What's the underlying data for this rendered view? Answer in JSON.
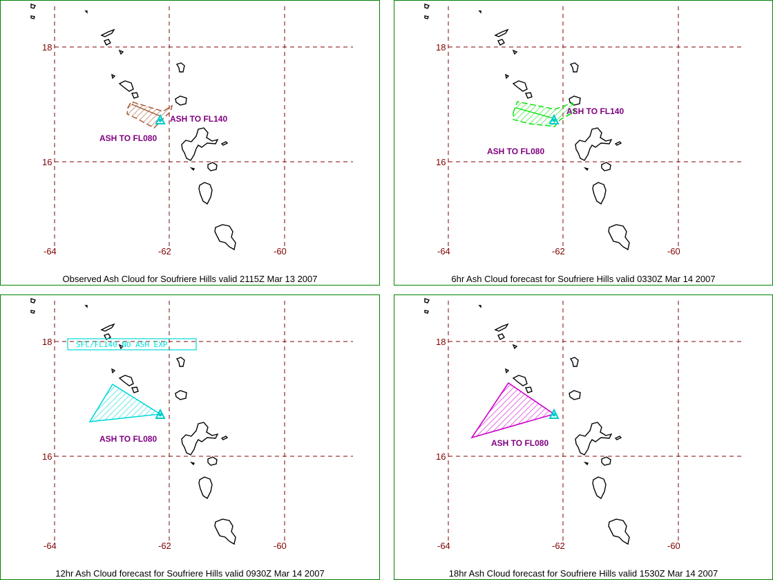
{
  "colors": {
    "border": "#008000",
    "grid": "#800000",
    "tick_text": "#800000",
    "label_text": "#800080",
    "coast": "#000000",
    "volcano": "#00cccc"
  },
  "axes": {
    "lat_ticks": [
      "18",
      "16"
    ],
    "lon_ticks": [
      "-64",
      "-62",
      "-60"
    ]
  },
  "panels": [
    {
      "caption": "Observed Ash Cloud for Soufriere  Hills valid 2115Z Mar 13 2007",
      "labels": [
        "ASH TO FL140",
        "ASH TO FL080"
      ],
      "ash_color": "#a0522d"
    },
    {
      "caption": "6hr Ash Cloud forecast for Soufriere  Hills valid 0330Z Mar 14 2007",
      "labels": [
        "ASH TO FL140",
        "ASH TO FL080"
      ],
      "ash_color": "#00e000"
    },
    {
      "caption": "12hr Ash Cloud forecast for Soufriere  Hills valid 0930Z Mar 14 2007",
      "labels": [
        "SFC/FL140 NO ASH EXP",
        "ASH TO FL080"
      ],
      "ash_color": "#00d8d8"
    },
    {
      "caption": "18hr Ash Cloud forecast for Soufriere  Hills valid 1530Z Mar 14 2007",
      "labels": [
        "ASH TO FL080"
      ],
      "ash_color": "#cc00cc"
    }
  ]
}
